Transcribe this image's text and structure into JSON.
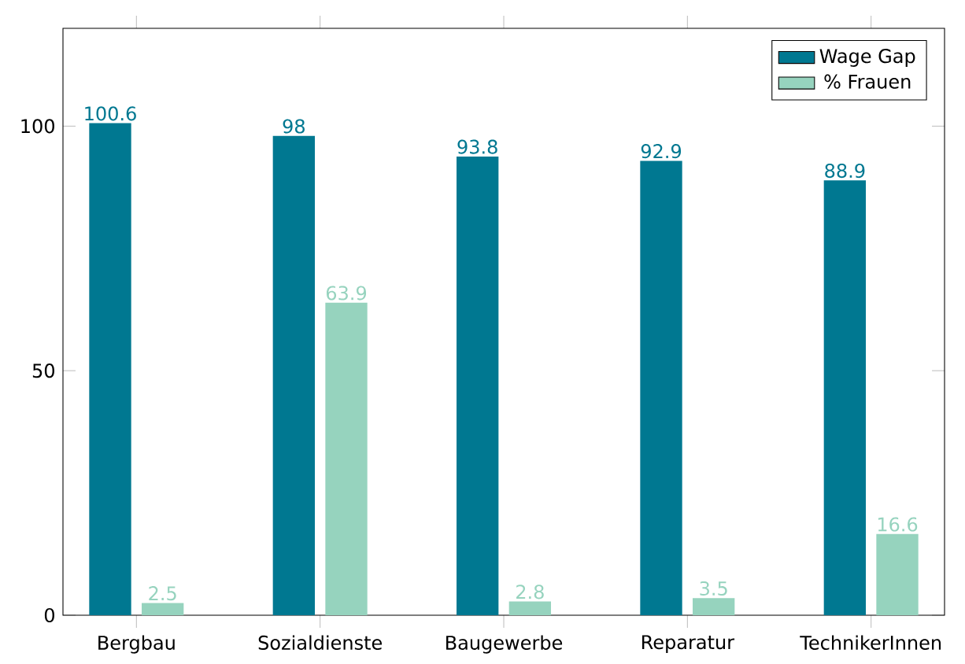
{
  "chart_data": {
    "type": "bar",
    "categories": [
      "Bergbau",
      "Sozialdienste",
      "Baugewerbe",
      "Reparatur",
      "TechnikerInnen"
    ],
    "series": [
      {
        "name": "Wage Gap",
        "color": "#007891",
        "values": [
          100.6,
          98,
          93.8,
          92.9,
          88.9
        ]
      },
      {
        "name": "% Frauen",
        "color": "#96d3be",
        "values": [
          2.5,
          63.9,
          2.8,
          3.5,
          16.6
        ]
      }
    ],
    "ylim": [
      0,
      120
    ],
    "yticks": [
      0,
      50,
      100
    ],
    "data_labels": true,
    "legend": "top right"
  }
}
